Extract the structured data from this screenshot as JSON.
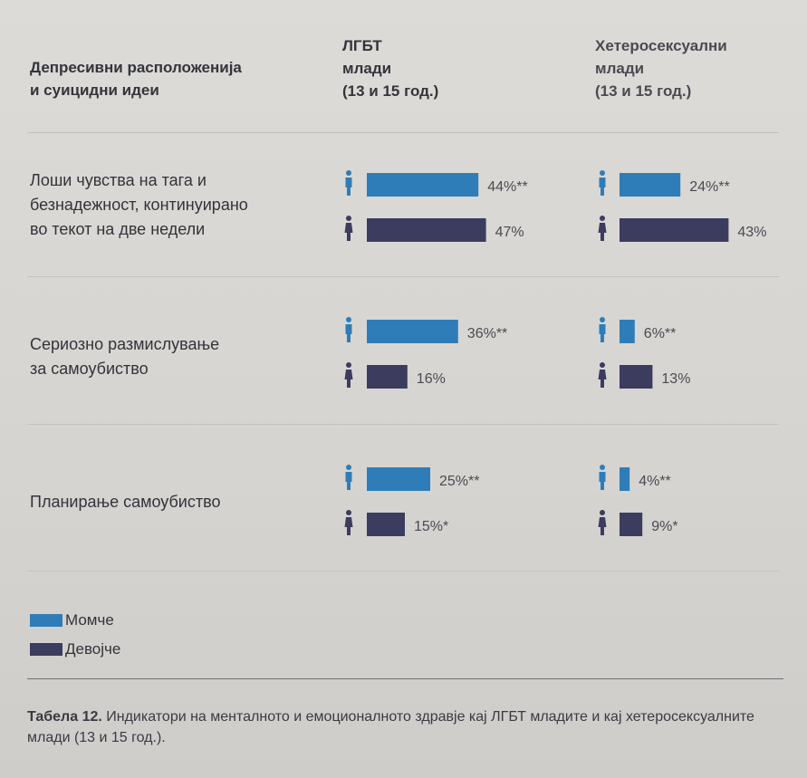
{
  "header": {
    "col0": [
      "Депресивни расположенија",
      "и суицидни идеи"
    ],
    "col1": [
      "ЛГБТ",
      "млади",
      "(13 и 15 год.)"
    ],
    "col2": [
      "Хетеросексуални",
      "млади",
      "(13 и 15 год.)"
    ]
  },
  "rows": [
    {
      "label": [
        "Лоши чувства на тага и",
        "безнадежност, континуирано",
        "во текот на две недели"
      ]
    },
    {
      "label": [
        "Сериозно размислување",
        "за самоубиство"
      ]
    },
    {
      "label": [
        "Планирање самоубиство"
      ]
    }
  ],
  "legend": {
    "boys": "Момче",
    "girls": "Девојче"
  },
  "caption": {
    "bold": "Табела 12.",
    "text": " Индикатори на менталното и емоционалното здравје кај ЛГБТ младите и кај хетеросексуалните млади (13 и 15 год.)."
  },
  "colors": {
    "boys": "#2f7db8",
    "girls": "#3b3c5e"
  },
  "icons": {
    "boys": "person-male-icon",
    "girls": "person-female-icon"
  },
  "chart_data": {
    "type": "bar",
    "orientation": "horizontal",
    "groups": [
      "ЛГБТ млади (13 и 15 год.)",
      "Хетеросексуални млади (13 и 15 год.)"
    ],
    "categories": [
      "Лоши чувства на тага и безнадежност, континуирано во текот на две недели",
      "Сериозно размислување за самоубиство",
      "Планирање самоубиство"
    ],
    "series": [
      {
        "name": "Момче",
        "lgbt": [
          44,
          36,
          25
        ],
        "hetero": [
          24,
          6,
          4
        ],
        "lgbt_labels": [
          "44%**",
          "36%**",
          "25%**"
        ],
        "hetero_labels": [
          "24%**",
          "6%**",
          "4%**"
        ]
      },
      {
        "name": "Девојче",
        "lgbt": [
          47,
          16,
          15
        ],
        "hetero": [
          43,
          13,
          9
        ],
        "lgbt_labels": [
          "47%",
          "16%",
          "15%*"
        ],
        "hetero_labels": [
          "43%",
          "13%",
          "9%*"
        ]
      }
    ],
    "unit": "%"
  }
}
